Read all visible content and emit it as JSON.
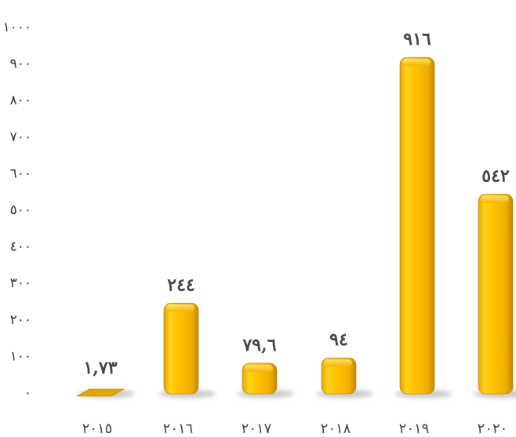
{
  "chart_data": {
    "type": "bar",
    "categories": [
      "٢٠١٥",
      "٢٠١٦",
      "٢٠١٧",
      "٢٠١٨",
      "٢٠١٩",
      "٢٠٢٠"
    ],
    "values": [
      1.73,
      244,
      79.6,
      94,
      916,
      542
    ],
    "data_labels": [
      "١,٧٣",
      "٢٤٤",
      "٧٩,٦",
      "٩٤",
      "٩١٦",
      "٥٤٢"
    ],
    "ylim": [
      0,
      1000
    ],
    "yticks": [
      {
        "value": 0,
        "label": "٠"
      },
      {
        "value": 100,
        "label": "١٠٠"
      },
      {
        "value": 200,
        "label": "٢٠٠"
      },
      {
        "value": 300,
        "label": "٣٠٠"
      },
      {
        "value": 400,
        "label": "٤٠٠"
      },
      {
        "value": 500,
        "label": "٥٠٠"
      },
      {
        "value": 600,
        "label": "٦٠٠"
      },
      {
        "value": 700,
        "label": "٧٠٠"
      },
      {
        "value": 800,
        "label": "٨٠٠"
      },
      {
        "value": 900,
        "label": "٩٠٠"
      },
      {
        "value": 1000,
        "label": "١٠٠٠"
      }
    ],
    "grid": false,
    "legend": "none",
    "bar_color": "#F5B800",
    "title": "",
    "xlabel": "",
    "ylabel": ""
  }
}
